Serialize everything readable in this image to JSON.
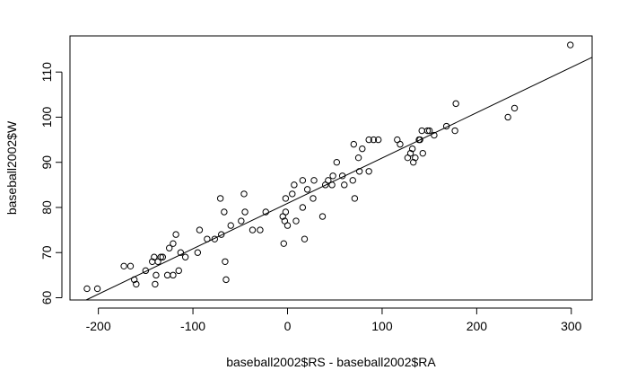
{
  "chart_data": {
    "type": "scatter",
    "xlabel": "baseball2002$RS - baseball2002$RA",
    "ylabel": "baseball2002$W",
    "xlim": [
      -230,
      322
    ],
    "ylim": [
      59.5,
      118
    ],
    "x_ticks": [
      -200,
      -100,
      0,
      100,
      200,
      300
    ],
    "y_ticks": [
      60,
      70,
      80,
      90,
      100,
      110
    ],
    "x_tick_labels": [
      "-200",
      "-100",
      "0",
      "100",
      "200",
      "300"
    ],
    "y_tick_labels": [
      "60",
      "70",
      "80",
      "90",
      "100",
      "110"
    ],
    "grid": false,
    "series": [
      {
        "points": [
          [
            -212,
            62
          ],
          [
            -201,
            62
          ],
          [
            -173,
            67
          ],
          [
            -166,
            67
          ],
          [
            -162,
            64
          ],
          [
            -160,
            63
          ],
          [
            -150,
            66
          ],
          [
            -143,
            68
          ],
          [
            -141,
            69
          ],
          [
            -140,
            63
          ],
          [
            -139,
            65
          ],
          [
            -137,
            68
          ],
          [
            -134,
            69
          ],
          [
            -132,
            69
          ],
          [
            -127,
            65
          ],
          [
            -125,
            71
          ],
          [
            -121,
            72
          ],
          [
            -121,
            65
          ],
          [
            -118,
            74
          ],
          [
            -115,
            66
          ],
          [
            -113,
            70
          ],
          [
            -108,
            69
          ],
          [
            -95,
            70
          ],
          [
            -93,
            75
          ],
          [
            -85,
            73
          ],
          [
            -77,
            73
          ],
          [
            -71,
            82
          ],
          [
            -70,
            74
          ],
          [
            -67,
            79
          ],
          [
            -66,
            68
          ],
          [
            -65,
            64
          ],
          [
            -60,
            76
          ],
          [
            -49,
            77
          ],
          [
            -46,
            83
          ],
          [
            -45,
            79
          ],
          [
            -37,
            75
          ],
          [
            -29,
            75
          ],
          [
            -23,
            79
          ],
          [
            -5,
            78
          ],
          [
            -4,
            72
          ],
          [
            -3,
            77
          ],
          [
            -2,
            79
          ],
          [
            -2,
            82
          ],
          [
            0,
            76
          ],
          [
            5,
            83
          ],
          [
            7,
            85
          ],
          [
            9,
            77
          ],
          [
            16,
            80
          ],
          [
            16,
            86
          ],
          [
            18,
            73
          ],
          [
            21,
            84
          ],
          [
            27,
            82
          ],
          [
            28,
            86
          ],
          [
            37,
            78
          ],
          [
            40,
            85
          ],
          [
            43,
            86
          ],
          [
            47,
            85
          ],
          [
            48,
            87
          ],
          [
            52,
            90
          ],
          [
            58,
            87
          ],
          [
            60,
            85
          ],
          [
            69,
            86
          ],
          [
            70,
            94
          ],
          [
            71,
            82
          ],
          [
            75,
            91
          ],
          [
            76,
            88
          ],
          [
            79,
            93
          ],
          [
            86,
            88
          ],
          [
            86,
            95
          ],
          [
            91,
            95
          ],
          [
            96,
            95
          ],
          [
            116,
            95
          ],
          [
            119,
            94
          ],
          [
            127,
            91
          ],
          [
            130,
            92
          ],
          [
            132,
            93
          ],
          [
            133,
            90
          ],
          [
            135,
            91
          ],
          [
            139,
            95
          ],
          [
            140,
            95
          ],
          [
            142,
            97
          ],
          [
            143,
            92
          ],
          [
            148,
            97
          ],
          [
            150,
            97
          ],
          [
            155,
            96
          ],
          [
            168,
            98
          ],
          [
            177,
            97
          ],
          [
            178,
            103
          ],
          [
            233,
            100
          ],
          [
            240,
            102
          ],
          [
            299,
            116
          ]
        ]
      }
    ],
    "fit_line": {
      "intercept": 80.9,
      "slope": 0.1005
    }
  }
}
